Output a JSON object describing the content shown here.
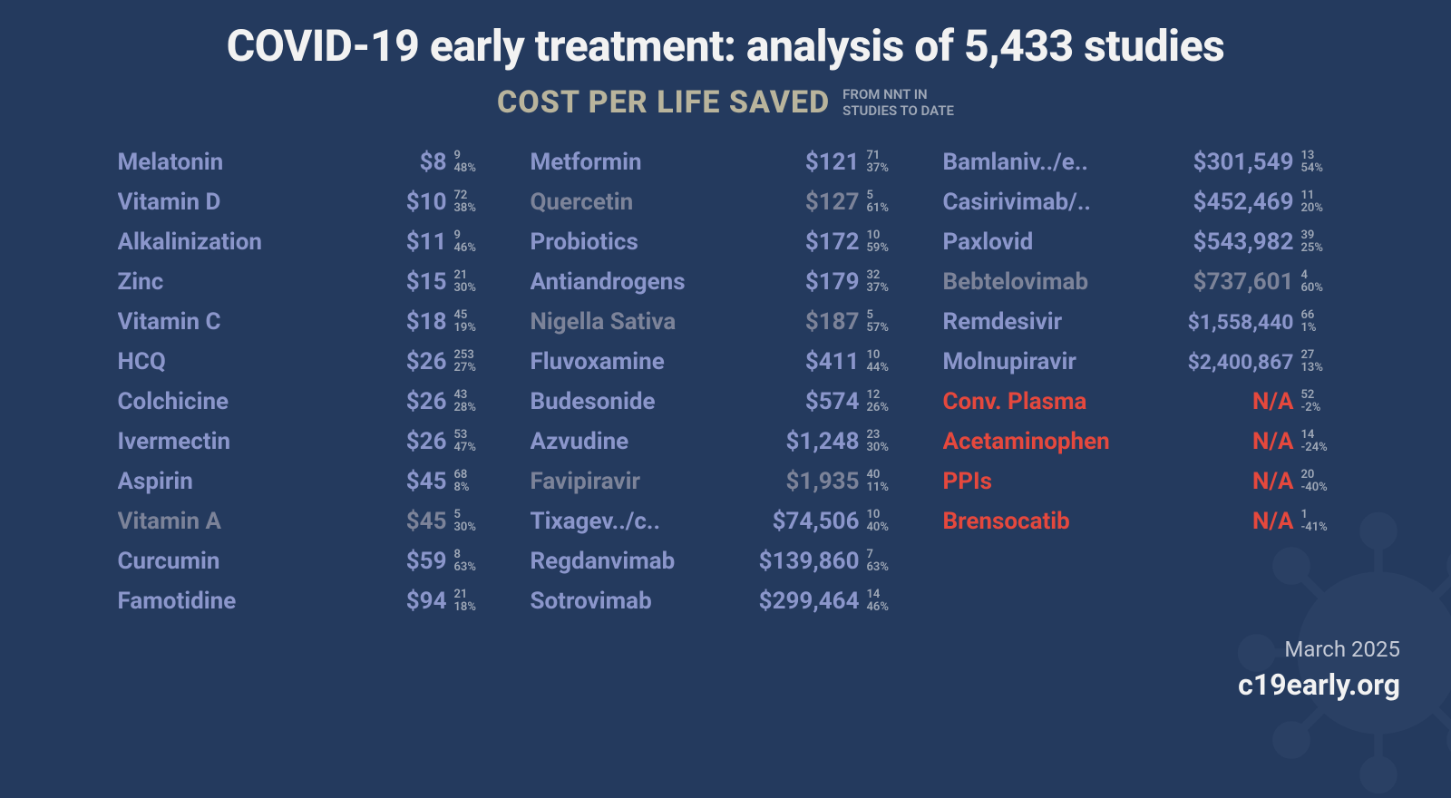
{
  "colors": {
    "background": "#243a5e",
    "title": "#f2f2f2",
    "subtitle": "#b9b49c",
    "subtitle_side": "#9fa8b7",
    "name_standard": "#8b96cb",
    "name_muted": "#7c8399",
    "negative": "#e5483d",
    "stat": "#9fa8b7",
    "footer_date": "#c5cad6",
    "footer_site": "#f2f2f2"
  },
  "typography": {
    "title_fontsize": 48,
    "subtitle_fontsize": 34,
    "row_fontsize": 26,
    "stat_fontsize": 13,
    "footer_date_fontsize": 24,
    "footer_site_fontsize": 32
  },
  "title": "COVID-19 early treatment: analysis of 5,433 studies",
  "subtitle_main": "COST PER LIFE SAVED",
  "subtitle_side_line1": "FROM NNT IN",
  "subtitle_side_line2": "STUDIES TO DATE",
  "footer_date": "March 2025",
  "footer_site": "c19early.org",
  "columns": [
    [
      {
        "name": "Melatonin",
        "cost": "$8",
        "n": "9",
        "pct": "48%",
        "style": "standard"
      },
      {
        "name": "Vitamin D",
        "cost": "$10",
        "n": "72",
        "pct": "38%",
        "style": "standard"
      },
      {
        "name": "Alkalinization",
        "cost": "$11",
        "n": "9",
        "pct": "46%",
        "style": "standard"
      },
      {
        "name": "Zinc",
        "cost": "$15",
        "n": "21",
        "pct": "30%",
        "style": "standard"
      },
      {
        "name": "Vitamin C",
        "cost": "$18",
        "n": "45",
        "pct": "19%",
        "style": "standard"
      },
      {
        "name": "HCQ",
        "cost": "$26",
        "n": "253",
        "pct": "27%",
        "style": "standard"
      },
      {
        "name": "Colchicine",
        "cost": "$26",
        "n": "43",
        "pct": "28%",
        "style": "standard"
      },
      {
        "name": "Ivermectin",
        "cost": "$26",
        "n": "53",
        "pct": "47%",
        "style": "standard"
      },
      {
        "name": "Aspirin",
        "cost": "$45",
        "n": "68",
        "pct": "8%",
        "style": "standard"
      },
      {
        "name": "Vitamin A",
        "cost": "$45",
        "n": "5",
        "pct": "30%",
        "style": "muted"
      },
      {
        "name": "Curcumin",
        "cost": "$59",
        "n": "8",
        "pct": "63%",
        "style": "standard"
      },
      {
        "name": "Famotidine",
        "cost": "$94",
        "n": "21",
        "pct": "18%",
        "style": "standard"
      }
    ],
    [
      {
        "name": "Metformin",
        "cost": "$121",
        "n": "71",
        "pct": "37%",
        "style": "standard"
      },
      {
        "name": "Quercetin",
        "cost": "$127",
        "n": "5",
        "pct": "61%",
        "style": "muted"
      },
      {
        "name": "Probiotics",
        "cost": "$172",
        "n": "10",
        "pct": "59%",
        "style": "standard"
      },
      {
        "name": "Antiandrogens",
        "cost": "$179",
        "n": "32",
        "pct": "37%",
        "style": "standard"
      },
      {
        "name": "Nigella Sativa",
        "cost": "$187",
        "n": "5",
        "pct": "57%",
        "style": "muted"
      },
      {
        "name": "Fluvoxamine",
        "cost": "$411",
        "n": "10",
        "pct": "44%",
        "style": "standard"
      },
      {
        "name": "Budesonide",
        "cost": "$574",
        "n": "12",
        "pct": "26%",
        "style": "standard"
      },
      {
        "name": "Azvudine",
        "cost": "$1,248",
        "n": "23",
        "pct": "30%",
        "style": "standard"
      },
      {
        "name": "Favipiravir",
        "cost": "$1,935",
        "n": "40",
        "pct": "11%",
        "style": "muted"
      },
      {
        "name": "Tixagev../c..",
        "cost": "$74,506",
        "n": "10",
        "pct": "40%",
        "style": "standard"
      },
      {
        "name": "Regdanvimab",
        "cost": "$139,860",
        "n": "7",
        "pct": "63%",
        "style": "standard"
      },
      {
        "name": "Sotrovimab",
        "cost": "$299,464",
        "n": "14",
        "pct": "46%",
        "style": "standard"
      }
    ],
    [
      {
        "name": "Bamlaniv../e..",
        "cost": "$301,549",
        "n": "13",
        "pct": "54%",
        "style": "standard"
      },
      {
        "name": "Casirivimab/..",
        "cost": "$452,469",
        "n": "11",
        "pct": "20%",
        "style": "standard"
      },
      {
        "name": "Paxlovid",
        "cost": "$543,982",
        "n": "39",
        "pct": "25%",
        "style": "standard"
      },
      {
        "name": "Bebtelovimab",
        "cost": "$737,601",
        "n": "4",
        "pct": "60%",
        "style": "muted"
      },
      {
        "name": "Remdesivir",
        "cost": "$1,558,440",
        "n": "66",
        "pct": "1%",
        "style": "standard",
        "cost_fontsize": 23
      },
      {
        "name": "Molnupiravir",
        "cost": "$2,400,867",
        "n": "27",
        "pct": "13%",
        "style": "standard",
        "cost_fontsize": 23
      },
      {
        "name": "Conv. Plasma",
        "cost": "N/A",
        "n": "52",
        "pct": "-2%",
        "style": "negative"
      },
      {
        "name": "Acetaminophen",
        "cost": "N/A",
        "n": "14",
        "pct": "-24%",
        "style": "negative"
      },
      {
        "name": "PPIs",
        "cost": "N/A",
        "n": "20",
        "pct": "-40%",
        "style": "negative"
      },
      {
        "name": "Brensocatib",
        "cost": "N/A",
        "n": "1",
        "pct": "-41%",
        "style": "negative"
      }
    ]
  ]
}
